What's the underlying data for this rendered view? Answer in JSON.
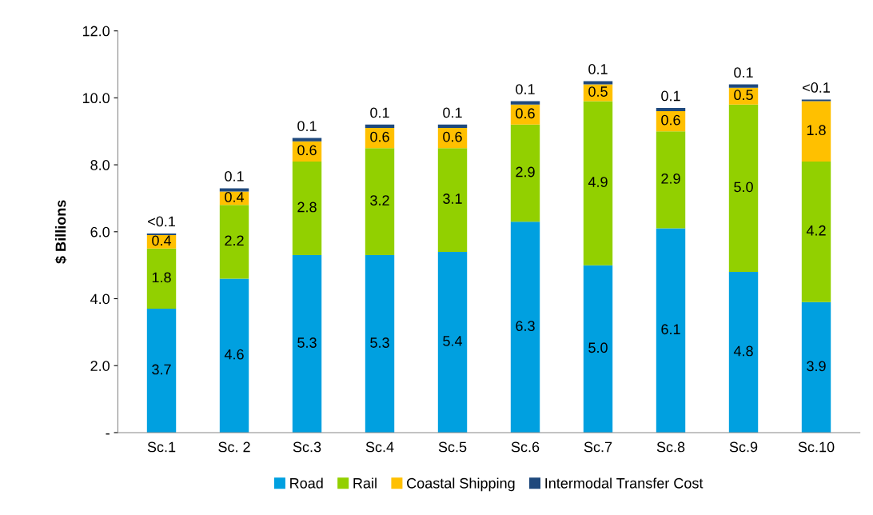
{
  "chart_data": {
    "type": "bar",
    "stacked": true,
    "ylabel": "$ Billions",
    "categories": [
      "Sc.1",
      "Sc. 2",
      "Sc.3",
      "Sc.4",
      "Sc.5",
      "Sc.6",
      "Sc.7",
      "Sc.8",
      "Sc.9",
      "Sc.10"
    ],
    "series": [
      {
        "name": "Road",
        "color": "#00a0e0",
        "values": [
          3.7,
          4.6,
          5.3,
          5.3,
          5.4,
          6.3,
          5.0,
          6.1,
          4.8,
          3.9
        ],
        "value_labels": [
          "3.7",
          "4.6",
          "5.3",
          "5.3",
          "5.4",
          "6.3",
          "5.0",
          "6.1",
          "4.8",
          "3.9"
        ]
      },
      {
        "name": "Rail",
        "color": "#92d000",
        "values": [
          1.8,
          2.2,
          2.8,
          3.2,
          3.1,
          2.9,
          4.9,
          2.9,
          5.0,
          4.2
        ],
        "value_labels": [
          "1.8",
          "2.2",
          "2.8",
          "3.2",
          "3.1",
          "2.9",
          "4.9",
          "2.9",
          "5.0",
          "4.2"
        ]
      },
      {
        "name": "Coastal Shipping",
        "color": "#ffc000",
        "values": [
          0.4,
          0.4,
          0.6,
          0.6,
          0.6,
          0.6,
          0.5,
          0.6,
          0.5,
          1.8
        ],
        "value_labels": [
          "0.4",
          "0.4",
          "0.6",
          "0.6",
          "0.6",
          "0.6",
          "0.5",
          "0.6",
          "0.5",
          "1.8"
        ]
      },
      {
        "name": "Intermodal Transfer Cost",
        "color": "#1f497d",
        "values": [
          0.05,
          0.1,
          0.1,
          0.1,
          0.1,
          0.1,
          0.1,
          0.1,
          0.1,
          0.05
        ],
        "value_labels": [
          "<0.1",
          "0.1",
          "0.1",
          "0.1",
          "0.1",
          "0.1",
          "0.1",
          "0.1",
          "0.1",
          "<0.1"
        ]
      }
    ],
    "ylim": [
      0,
      12
    ],
    "yticks": [
      {
        "value": 0,
        "label": "-"
      },
      {
        "value": 2,
        "label": "2.0"
      },
      {
        "value": 4,
        "label": "4.0"
      },
      {
        "value": 6,
        "label": "6.0"
      },
      {
        "value": 8,
        "label": "8.0"
      },
      {
        "value": 10,
        "label": "10.0"
      },
      {
        "value": 12,
        "label": "12.0"
      }
    ],
    "grid": false,
    "legend": "bottom"
  }
}
